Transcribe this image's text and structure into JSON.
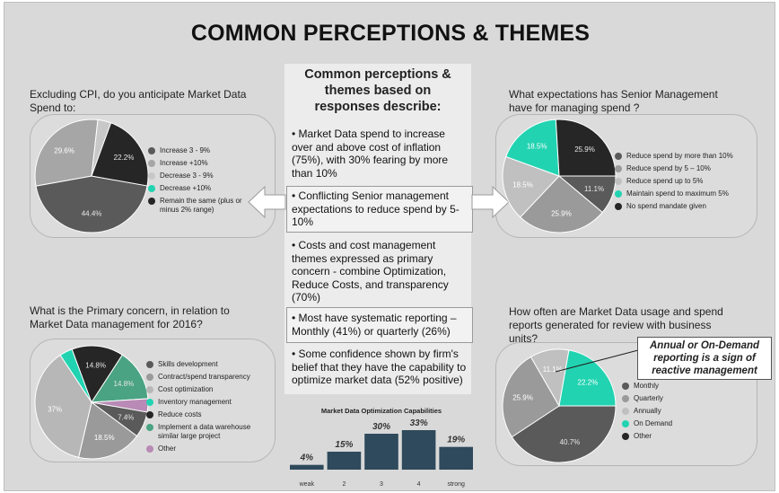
{
  "title": "COMMON PERCEPTIONS & THEMES",
  "center": {
    "heading": [
      "Common perceptions &",
      "themes based on",
      "responses describe:"
    ],
    "bullets": [
      [
        "• Market Data spend to increase",
        "over and above cost of inflation",
        "(75%), with 30% fearing by more",
        "than 10%"
      ],
      [
        "• Conflicting Senior management",
        "expectations to reduce spend by 5-",
        "10%"
      ],
      [
        "• Costs and cost management",
        "themes expressed as primary",
        "concern - combine Optimization,",
        "Reduce Costs, and transparency",
        "(70%)"
      ],
      [
        "• Most have systematic reporting –",
        "Monthly (41%) or quarterly (26%)"
      ],
      [
        "• Some confidence shown by firm's",
        "belief that they have the capability to",
        "optimize market data (52% positive)"
      ]
    ]
  },
  "callout": [
    "Annual or On-Demand",
    "reporting is a sign of",
    "reactive management"
  ],
  "chart_data": [
    {
      "type": "pie",
      "title": [
        "Excluding CPI, do you anticipate Market Data",
        "Spend to:"
      ],
      "slices": [
        {
          "label": "Increase 3 - 9%",
          "value": 44.4,
          "display": "44.4%",
          "color": "#5a5a5a"
        },
        {
          "label": "Increase +10%",
          "value": 29.6,
          "display": "29.6%",
          "color": "#a6a6a6"
        },
        {
          "label": "Decrease 3 - 9%",
          "value": 3.8,
          "display": "",
          "color": "#c8c8c8"
        },
        {
          "label": "Decrease +10%",
          "value": 0,
          "display": "",
          "color": "#22d3b1"
        },
        {
          "label": "Remain the same (plus or minus 2% range)",
          "value": 22.2,
          "display": "22.2%",
          "color": "#262626"
        }
      ]
    },
    {
      "type": "pie",
      "title": [
        "What expectations has Senior Management",
        "have for managing spend ?"
      ],
      "slices": [
        {
          "label": "Reduce spend by more than 10%",
          "value": 11.1,
          "display": "11.1%",
          "color": "#5a5a5a"
        },
        {
          "label": "Reduce spend by 5 – 10%",
          "value": 25.9,
          "display": "25.9%",
          "color": "#9a9a9a"
        },
        {
          "label": "Reduce spend up to 5%",
          "value": 18.5,
          "display": "18.5%",
          "color": "#c0c0c0"
        },
        {
          "label": "Maintain spend to maximum 5%",
          "value": 18.5,
          "display": "18.5%",
          "color": "#22d3b1"
        },
        {
          "label": "No spend mandate given",
          "value": 25.9,
          "display": "25.9%",
          "color": "#262626"
        }
      ]
    },
    {
      "type": "pie",
      "title": [
        "What is the Primary concern, in relation to",
        "Market Data management for 2016?"
      ],
      "slices": [
        {
          "label": "Skills development",
          "value": 7.4,
          "display": "7.4%",
          "color": "#5a5a5a"
        },
        {
          "label": "Contract/spend transparency",
          "value": 18.5,
          "display": "18.5%",
          "color": "#9a9a9a"
        },
        {
          "label": "Cost optimization",
          "value": 37,
          "display": "37%",
          "color": "#b7b7b7"
        },
        {
          "label": "Inventory management",
          "value": 3.7,
          "display": "",
          "color": "#22d3b1"
        },
        {
          "label": "Reduce costs",
          "value": 14.8,
          "display": "14.8%",
          "color": "#262626"
        },
        {
          "label": "Implement a data warehouse similar large project",
          "value": 14.8,
          "display": "14.8%",
          "color": "#4aa383"
        },
        {
          "label": "Other",
          "value": 3.8,
          "display": "",
          "color": "#b88ab5"
        }
      ]
    },
    {
      "type": "pie",
      "title": [
        "How often are Market Data usage and spend",
        "reports generated for review with business",
        "units?"
      ],
      "slices": [
        {
          "label": "Monthly",
          "value": 40.7,
          "display": "40.7%",
          "color": "#5a5a5a"
        },
        {
          "label": "Quarterly",
          "value": 25.9,
          "display": "25.9%",
          "color": "#9a9a9a"
        },
        {
          "label": "Annually",
          "value": 11.1,
          "display": "11.1%",
          "color": "#c0c0c0"
        },
        {
          "label": "On Demand",
          "value": 22.2,
          "display": "22.2%",
          "color": "#22d3b1"
        },
        {
          "label": "Other",
          "value": 0,
          "display": "",
          "color": "#262626"
        }
      ]
    },
    {
      "type": "bar",
      "title": "Market Data Optimization Capabilities",
      "categories": [
        "weak",
        "2",
        "3",
        "4",
        "strong"
      ],
      "values": [
        4,
        15,
        30,
        33,
        19
      ],
      "labels": [
        "4%",
        "15%",
        "30%",
        "33%",
        "19%"
      ],
      "ylim": [
        0,
        36
      ],
      "color": "#2e4a5c"
    }
  ]
}
